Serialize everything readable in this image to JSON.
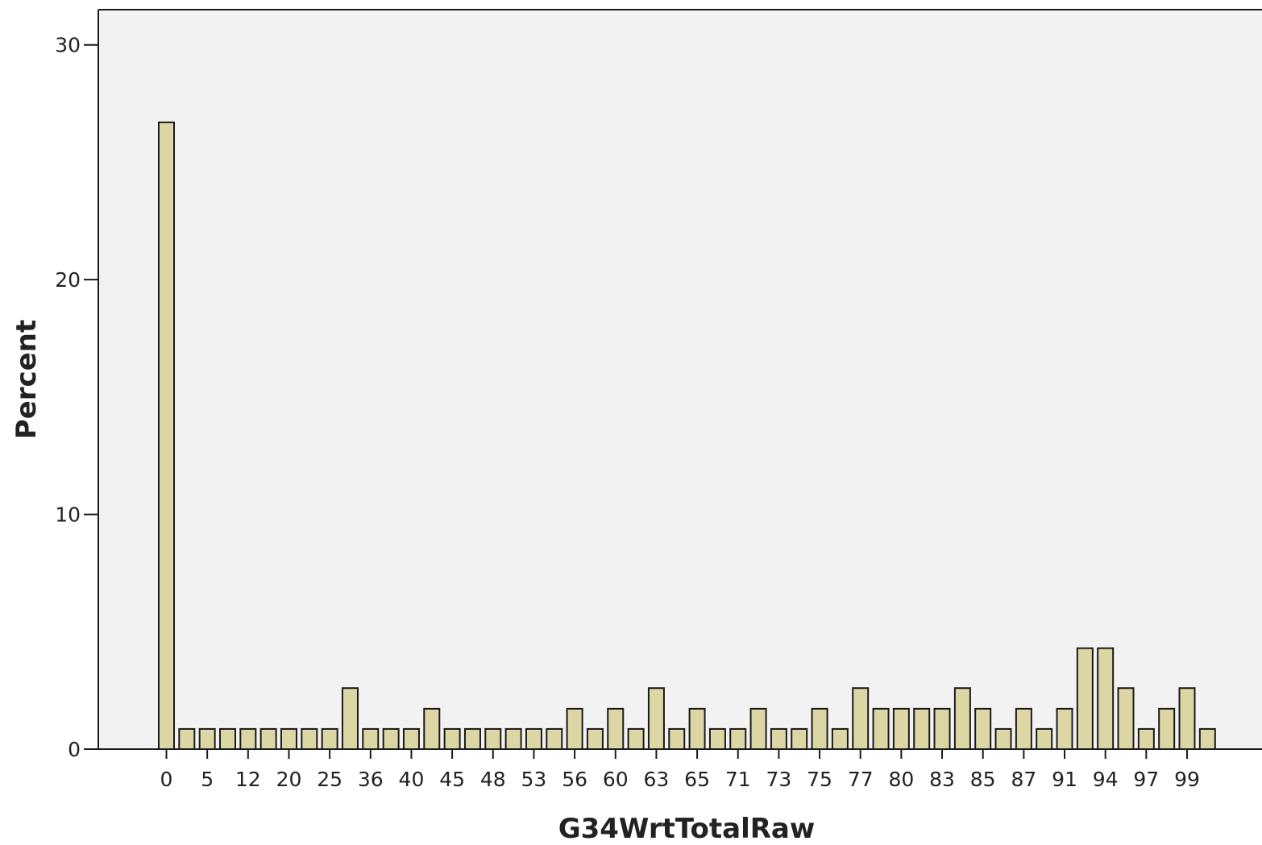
{
  "chart_data": {
    "type": "bar",
    "xlabel": "G34WrtTotalRaw",
    "ylabel": "Percent",
    "ylim": [
      0,
      31.5
    ],
    "yticks": [
      0,
      10,
      20,
      30
    ],
    "grid": false,
    "colors": {
      "bar_fill": "#dcd6a4",
      "bar_stroke": "#1a1a1a",
      "plot_bg": "#f2f2f2"
    },
    "xtick_labels": [
      "0",
      "5",
      "12",
      "20",
      "25",
      "36",
      "40",
      "45",
      "48",
      "53",
      "56",
      "60",
      "63",
      "65",
      "71",
      "73",
      "75",
      "77",
      "80",
      "83",
      "85",
      "87",
      "91",
      "94",
      "97",
      "99"
    ],
    "values": [
      26.7,
      0.86,
      0.86,
      0.86,
      0.86,
      0.86,
      0.86,
      0.86,
      0.86,
      2.6,
      0.86,
      0.86,
      0.86,
      1.72,
      0.86,
      0.86,
      0.86,
      0.86,
      0.86,
      0.86,
      1.72,
      0.86,
      1.72,
      0.86,
      2.6,
      0.86,
      1.72,
      0.86,
      0.86,
      1.72,
      0.86,
      0.86,
      1.72,
      0.86,
      2.6,
      1.72,
      1.72,
      1.72,
      1.72,
      2.6,
      1.72,
      0.86,
      1.72,
      0.86,
      1.72,
      4.3,
      4.3,
      2.6,
      0.86,
      1.72,
      2.6,
      0.86
    ]
  }
}
